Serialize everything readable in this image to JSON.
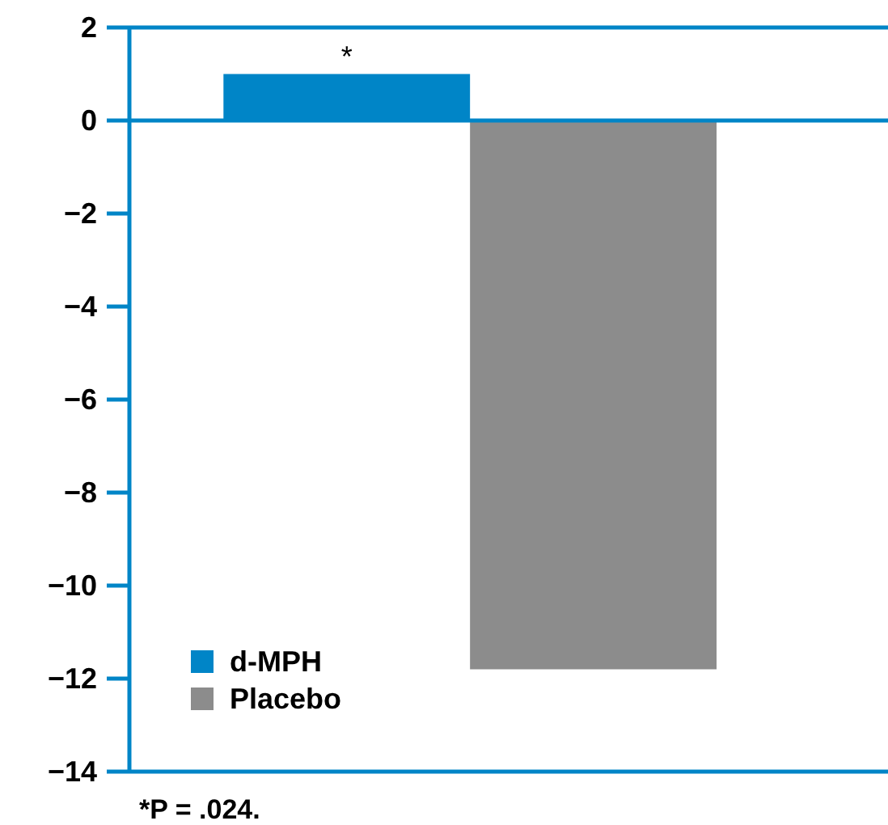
{
  "chart_data": {
    "type": "bar",
    "categories": [
      null
    ],
    "series": [
      {
        "name": "d-MPH",
        "color": "#0085c7",
        "values": [
          1.0
        ]
      },
      {
        "name": "Placebo",
        "color": "#8c8c8c",
        "values": [
          -11.8
        ]
      }
    ],
    "ylim": [
      -14,
      2
    ],
    "yticks": [
      2,
      0,
      {
        "value": -2,
        "label": "−2"
      },
      {
        "value": -4,
        "label": "−4"
      },
      {
        "value": -6,
        "label": "−6"
      },
      {
        "value": -8,
        "label": "−8"
      },
      {
        "value": -10,
        "label": "−10"
      },
      {
        "value": -12,
        "label": "−12"
      },
      {
        "value": -14,
        "label": "−14"
      }
    ],
    "grid": false,
    "legend": "bottom left",
    "ref_lines": [
      {
        "axis": "y",
        "value": 0,
        "color": "#0085c7"
      }
    ],
    "annotations": [
      {
        "text": "*",
        "y": 1.0
      },
      "*P = .024."
    ]
  }
}
